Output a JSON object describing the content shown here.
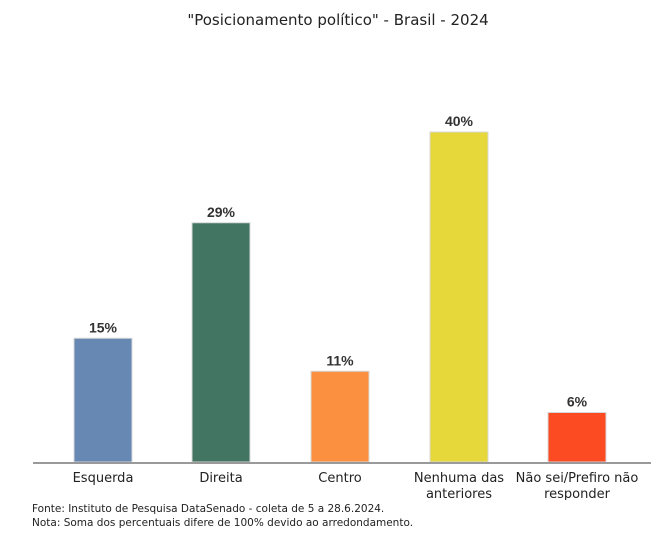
{
  "chart_data": {
    "type": "bar",
    "title": "\"Posicionamento político\" - Brasil - 2024",
    "categories": [
      "Esquerda",
      "Direita",
      "Centro",
      "Nenhuma das anteriores",
      "Não sei/Prefiro não responder"
    ],
    "category_lines": [
      [
        "Esquerda"
      ],
      [
        "Direita"
      ],
      [
        "Centro"
      ],
      [
        "Nenhuma das",
        "anteriores"
      ],
      [
        "Não sei/Prefiro não",
        "responder"
      ]
    ],
    "values": [
      15,
      29,
      11,
      40,
      6
    ],
    "data_labels": [
      "15%",
      "29%",
      "11%",
      "40%",
      "6%"
    ],
    "colors": [
      "#6688b3",
      "#437563",
      "#fb9140",
      "#e6d83a",
      "#fc4b22"
    ],
    "ylim": [
      0,
      40
    ],
    "grid": false,
    "legend": "none"
  },
  "footnotes": {
    "source": "Fonte: Instituto de Pesquisa DataSenado - coleta de 5 a 28.6.2024.",
    "note": "Nota: Soma dos percentuais difere de 100% devido ao arredondamento."
  }
}
